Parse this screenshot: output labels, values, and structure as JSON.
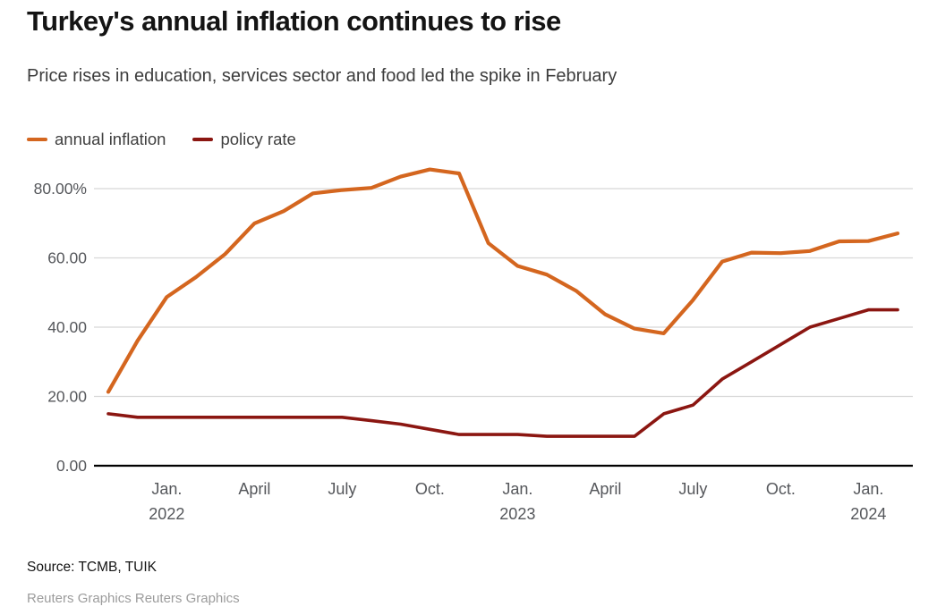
{
  "header": {
    "title": "Turkey's annual inflation continues to rise",
    "subtitle": "Price rises in education, services sector and food led the spike in February"
  },
  "legend": {
    "items": [
      {
        "label": "annual inflation",
        "color": "#d4661f"
      },
      {
        "label": "policy rate",
        "color": "#8b1611"
      }
    ]
  },
  "footer": {
    "source": "Source: TCMB, TUIK",
    "credit": "Reuters Graphics Reuters Graphics"
  },
  "colors": {
    "grid": "#d8d8d8",
    "axis": "#000000",
    "tick_text": "#55575b"
  },
  "chart_data": {
    "type": "line",
    "title": "Turkey's annual inflation continues to rise",
    "subtitle": "Price rises in education, services sector and food led the spike in February",
    "x": [
      "Nov 2021",
      "Dec 2021",
      "Jan 2022",
      "Feb 2022",
      "Mar 2022",
      "Apr 2022",
      "May 2022",
      "Jun 2022",
      "Jul 2022",
      "Aug 2022",
      "Sep 2022",
      "Oct 2022",
      "Nov 2022",
      "Dec 2022",
      "Jan 2023",
      "Feb 2023",
      "Mar 2023",
      "Apr 2023",
      "May 2023",
      "Jun 2023",
      "Jul 2023",
      "Aug 2023",
      "Sep 2023",
      "Oct 2023",
      "Nov 2023",
      "Dec 2023",
      "Jan 2024",
      "Feb 2024"
    ],
    "series": [
      {
        "name": "annual inflation",
        "color": "#d4661f",
        "values": [
          21.31,
          36.08,
          48.69,
          54.44,
          61.14,
          69.97,
          73.5,
          78.62,
          79.6,
          80.21,
          83.45,
          85.51,
          84.39,
          64.27,
          57.68,
          55.18,
          50.51,
          43.68,
          39.59,
          38.21,
          47.83,
          58.94,
          61.53,
          61.36,
          61.98,
          64.77,
          64.86,
          67.07
        ]
      },
      {
        "name": "policy rate",
        "color": "#8b1611",
        "values": [
          15,
          14,
          14,
          14,
          14,
          14,
          14,
          14,
          14,
          13,
          12,
          10.5,
          9,
          9,
          9,
          8.5,
          8.5,
          8.5,
          8.5,
          15,
          17.5,
          25,
          30,
          35,
          40,
          42.5,
          45,
          45
        ]
      }
    ],
    "y_axis": {
      "range": [
        0,
        88
      ],
      "ticks": [
        {
          "value": 80,
          "label": "80.00%"
        },
        {
          "value": 60,
          "label": "60.00"
        },
        {
          "value": 40,
          "label": "40.00"
        },
        {
          "value": 20,
          "label": "20.00"
        },
        {
          "value": 0,
          "label": "0.00"
        }
      ]
    },
    "x_axis": {
      "ticks": [
        {
          "index": 2,
          "label": "Jan.",
          "year": "2022"
        },
        {
          "index": 5,
          "label": "April"
        },
        {
          "index": 8,
          "label": "July"
        },
        {
          "index": 11,
          "label": "Oct."
        },
        {
          "index": 14,
          "label": "Jan.",
          "year": "2023"
        },
        {
          "index": 17,
          "label": "April"
        },
        {
          "index": 20,
          "label": "July"
        },
        {
          "index": 23,
          "label": "Oct."
        },
        {
          "index": 26,
          "label": "Jan.",
          "year": "2024"
        }
      ]
    },
    "grid": true,
    "legend_position": "top-left"
  }
}
